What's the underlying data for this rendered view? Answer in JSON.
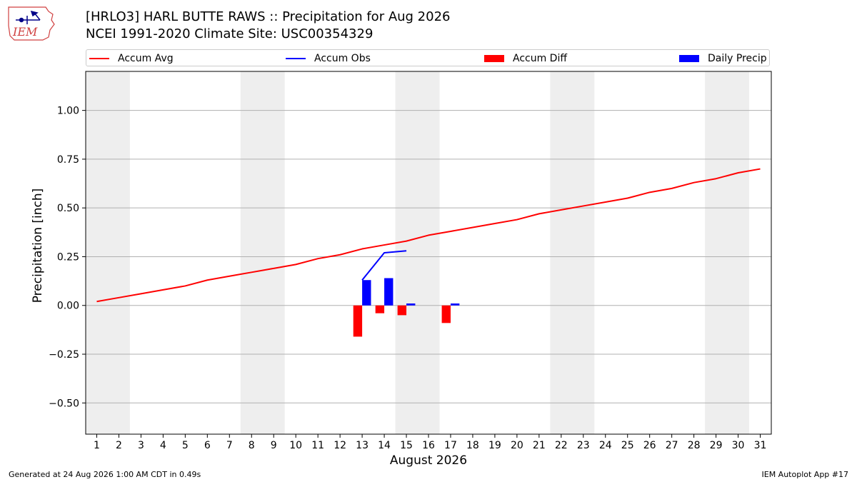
{
  "header": {
    "title_line1": "[HRLO3] HARL BUTTE RAWS :: Precipitation for Aug 2026",
    "title_line2": "NCEI 1991-2020 Climate Site: USC00354329",
    "logo_text": "IEM"
  },
  "legend": {
    "accum_avg": "Accum Avg",
    "accum_obs": "Accum Obs",
    "accum_diff": "Accum Diff",
    "daily_precip": "Daily Precip"
  },
  "footer": {
    "generated": "Generated at 24 Aug 2026 1:00 AM CDT in 0.49s",
    "app": "IEM Autoplot App #17"
  },
  "colors": {
    "accum_avg": "#ff0000",
    "accum_obs": "#0000ff",
    "accum_diff": "#ff0000",
    "daily_precip": "#0000ff",
    "weekend_shade": "#eeeeee",
    "grid": "#b0b0b0"
  },
  "chart_data": {
    "type": "bar",
    "xlabel": "August 2026",
    "ylabel": "Precipitation [inch]",
    "xlim": [
      0.5,
      31.5
    ],
    "ylim": [
      -0.66,
      1.2
    ],
    "grid": "y",
    "legend_position": "top",
    "x_ticks": [
      1,
      2,
      3,
      4,
      5,
      6,
      7,
      8,
      9,
      10,
      11,
      12,
      13,
      14,
      15,
      16,
      17,
      18,
      19,
      20,
      21,
      22,
      23,
      24,
      25,
      26,
      27,
      28,
      29,
      30,
      31
    ],
    "y_ticks": [
      {
        "value": 1.0,
        "label": "1.00"
      },
      {
        "value": 0.75,
        "label": "0.75"
      },
      {
        "value": 0.5,
        "label": "0.50"
      },
      {
        "value": 0.25,
        "label": "0.25"
      },
      {
        "value": 0.0,
        "label": "0.00"
      },
      {
        "value": -0.25,
        "label": "−0.25"
      },
      {
        "value": -0.5,
        "label": "−0.50"
      }
    ],
    "weekend_spans": [
      [
        0.5,
        2.5
      ],
      [
        7.5,
        9.5
      ],
      [
        14.5,
        16.5
      ],
      [
        21.5,
        23.5
      ],
      [
        28.5,
        30.5
      ]
    ],
    "series": [
      {
        "name": "Accum Avg",
        "kind": "line",
        "x": [
          1,
          2,
          3,
          4,
          5,
          6,
          7,
          8,
          9,
          10,
          11,
          12,
          13,
          14,
          15,
          16,
          17,
          18,
          19,
          20,
          21,
          22,
          23,
          24,
          25,
          26,
          27,
          28,
          29,
          30,
          31
        ],
        "values": [
          0.02,
          0.04,
          0.06,
          0.08,
          0.1,
          0.13,
          0.15,
          0.17,
          0.19,
          0.21,
          0.24,
          0.26,
          0.29,
          0.31,
          0.33,
          0.36,
          0.38,
          0.4,
          0.42,
          0.44,
          0.47,
          0.49,
          0.51,
          0.53,
          0.55,
          0.58,
          0.6,
          0.63,
          0.65,
          0.68,
          0.7
        ]
      },
      {
        "name": "Accum Obs",
        "kind": "line",
        "x": [
          13,
          14,
          15
        ],
        "values": [
          0.13,
          0.27,
          0.28
        ]
      },
      {
        "name": "Accum Diff",
        "kind": "bar",
        "x": [
          13,
          14,
          15,
          17
        ],
        "values": [
          -0.16,
          -0.04,
          -0.05,
          -0.09
        ]
      },
      {
        "name": "Daily Precip",
        "kind": "bar",
        "x": [
          13,
          14,
          15,
          17
        ],
        "values": [
          0.13,
          0.14,
          0.01,
          0.01
        ]
      }
    ]
  }
}
